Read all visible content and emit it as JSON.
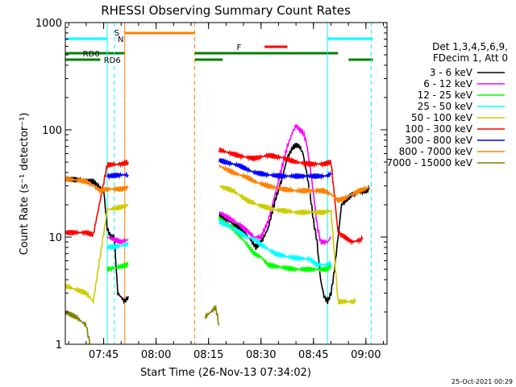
{
  "chart_data": {
    "type": "line",
    "title": "RHESSI Observing Summary Count Rates",
    "xlabel": "Start Time (26-Nov-13 07:34:02)",
    "ylabel": "Count Rate (s⁻¹ detector⁻¹)",
    "y_scale": "log",
    "ylim": [
      1,
      1000
    ],
    "xlim_minutes_after_start": [
      0,
      92
    ],
    "x_ticks": [
      {
        "label": "07:45",
        "minute": 10.97
      },
      {
        "label": "08:00",
        "minute": 25.97
      },
      {
        "label": "08:15",
        "minute": 40.97
      },
      {
        "label": "08:30",
        "minute": 55.97
      },
      {
        "label": "08:45",
        "minute": 70.97
      },
      {
        "label": "09:00",
        "minute": 85.97
      }
    ],
    "y_ticks": [
      {
        "label": "1",
        "value": 1
      },
      {
        "label": "10",
        "value": 10
      },
      {
        "label": "100",
        "value": 100
      },
      {
        "label": "1000",
        "value": 1000
      }
    ],
    "legend": {
      "placement": "right",
      "header": [
        "Det 1,3,4,5,6,9,",
        "FDecim 1, Att 0"
      ],
      "entries": [
        {
          "label": "3 - 6 keV",
          "color": "#000000"
        },
        {
          "label": "6 - 12 keV",
          "color": "#ff00ff"
        },
        {
          "label": "12 - 25 keV",
          "color": "#00ff00"
        },
        {
          "label": "25 - 50 keV",
          "color": "#00ffff"
        },
        {
          "label": "50 - 100 keV",
          "color": "#cccc00"
        },
        {
          "label": "100 - 300 keV",
          "color": "#ff0000"
        },
        {
          "label": "300 - 800 keV",
          "color": "#0000ff"
        },
        {
          "label": "800 - 7000 keV",
          "color": "#ff8000"
        },
        {
          "label": "7000 - 15000 keV",
          "color": "#808000"
        }
      ]
    },
    "series": [
      {
        "name": "3 - 6 keV",
        "color": "#000000",
        "points": [
          [
            0,
            35
          ],
          [
            8,
            33
          ],
          [
            11,
            27
          ],
          [
            12,
            12
          ],
          [
            13,
            10
          ],
          [
            14,
            10
          ],
          [
            15,
            3
          ],
          [
            17,
            2.5
          ],
          [
            18,
            2.8
          ],
          [
            35,
            null
          ],
          [
            44,
            16
          ],
          [
            47,
            14
          ],
          [
            50,
            12
          ],
          [
            53,
            9.5
          ],
          [
            54.5,
            8
          ],
          [
            56,
            9
          ],
          [
            58,
            12
          ],
          [
            60,
            22
          ],
          [
            62,
            35
          ],
          [
            63.5,
            55
          ],
          [
            65,
            68
          ],
          [
            66,
            72
          ],
          [
            67,
            70
          ],
          [
            68,
            60
          ],
          [
            69,
            40
          ],
          [
            70,
            25
          ],
          [
            71,
            14
          ],
          [
            72,
            9
          ],
          [
            73,
            4
          ],
          [
            74,
            2.8
          ],
          [
            75,
            2.5
          ],
          [
            76,
            3
          ],
          [
            77,
            5
          ],
          [
            79,
            20
          ],
          [
            82,
            25
          ],
          [
            86,
            27
          ],
          [
            87,
            28
          ]
        ]
      },
      {
        "name": "6 - 12 keV",
        "color": "#ff00ff",
        "points": [
          [
            12,
            10
          ],
          [
            16,
            9
          ],
          [
            18,
            9.5
          ],
          [
            35,
            null
          ],
          [
            44,
            17
          ],
          [
            50,
            13
          ],
          [
            54,
            10
          ],
          [
            56,
            10
          ],
          [
            58,
            14
          ],
          [
            60,
            25
          ],
          [
            62,
            45
          ],
          [
            63.5,
            70
          ],
          [
            65,
            95
          ],
          [
            66,
            110
          ],
          [
            67,
            100
          ],
          [
            68,
            95
          ],
          [
            69,
            75
          ],
          [
            70,
            45
          ],
          [
            71,
            25
          ],
          [
            72,
            13
          ],
          [
            73,
            9
          ],
          [
            75,
            9
          ],
          [
            76,
            10
          ]
        ]
      },
      {
        "name": "12 - 25 keV",
        "color": "#00ff00",
        "points": [
          [
            12,
            5
          ],
          [
            18,
            5.5
          ],
          [
            35,
            null
          ],
          [
            44,
            15
          ],
          [
            48,
            12
          ],
          [
            52,
            8.5
          ],
          [
            54,
            7
          ],
          [
            56,
            6.5
          ],
          [
            58,
            5.5
          ],
          [
            62,
            5.2
          ],
          [
            66,
            5
          ],
          [
            70,
            5
          ],
          [
            72,
            5
          ],
          [
            75,
            5
          ],
          [
            76,
            5.5
          ]
        ]
      },
      {
        "name": "25 - 50 keV",
        "color": "#00ffff",
        "points": [
          [
            12,
            8
          ],
          [
            18,
            8.5
          ],
          [
            35,
            null
          ],
          [
            44,
            14
          ],
          [
            48,
            12
          ],
          [
            52,
            10
          ],
          [
            54,
            9.5
          ],
          [
            56,
            8.5
          ],
          [
            60,
            7
          ],
          [
            64,
            6.5
          ],
          [
            70,
            6.2
          ],
          [
            72,
            5.5
          ],
          [
            75,
            5.5
          ],
          [
            76,
            5.8
          ]
        ]
      },
      {
        "name": "50 - 100 keV",
        "color": "#cccc00",
        "points": [
          [
            0,
            3.5
          ],
          [
            6,
            3
          ],
          [
            8,
            2.5
          ],
          [
            12,
            18
          ],
          [
            16,
            19
          ],
          [
            18,
            20
          ],
          [
            35,
            null
          ],
          [
            44,
            30
          ],
          [
            48,
            27
          ],
          [
            52,
            22
          ],
          [
            55,
            20
          ],
          [
            60,
            18
          ],
          [
            66,
            17
          ],
          [
            72,
            17
          ],
          [
            74,
            17
          ],
          [
            76,
            17.5
          ],
          [
            78,
            2.5
          ],
          [
            83,
            2.5
          ]
        ]
      },
      {
        "name": "100 - 300 keV",
        "color": "#ff0000",
        "points": [
          [
            0,
            11
          ],
          [
            3,
            11
          ],
          [
            6,
            11
          ],
          [
            8,
            10.5
          ],
          [
            12,
            47
          ],
          [
            16,
            48
          ],
          [
            18,
            50
          ],
          [
            35,
            null
          ],
          [
            44,
            65
          ],
          [
            50,
            57
          ],
          [
            54,
            54
          ],
          [
            58,
            58
          ],
          [
            62,
            55
          ],
          [
            66,
            50
          ],
          [
            70,
            48
          ],
          [
            74,
            48
          ],
          [
            76,
            50
          ],
          [
            78,
            11
          ],
          [
            82,
            9
          ],
          [
            85,
            9.5
          ]
        ]
      },
      {
        "name": "300 - 800 keV",
        "color": "#0000ff",
        "points": [
          [
            12,
            37
          ],
          [
            16,
            38
          ],
          [
            18,
            38
          ],
          [
            35,
            null
          ],
          [
            44,
            52
          ],
          [
            50,
            46
          ],
          [
            54,
            40
          ],
          [
            58,
            38
          ],
          [
            62,
            37
          ],
          [
            66,
            37
          ],
          [
            70,
            37
          ],
          [
            74,
            37
          ],
          [
            76,
            38
          ]
        ]
      },
      {
        "name": "800 - 7000 keV",
        "color": "#ff8000",
        "points": [
          [
            0,
            35
          ],
          [
            3,
            34
          ],
          [
            6,
            33
          ],
          [
            8,
            30
          ],
          [
            10,
            27
          ],
          [
            12,
            28
          ],
          [
            16,
            28
          ],
          [
            18,
            29
          ],
          [
            35,
            null
          ],
          [
            44,
            46
          ],
          [
            48,
            40
          ],
          [
            52,
            36
          ],
          [
            55,
            32
          ],
          [
            58,
            30
          ],
          [
            62,
            28
          ],
          [
            66,
            27
          ],
          [
            70,
            27
          ],
          [
            74,
            27
          ],
          [
            76,
            25
          ],
          [
            78,
            22
          ],
          [
            80,
            23
          ],
          [
            84,
            27
          ],
          [
            87,
            29
          ]
        ]
      },
      {
        "name": "7000 - 15000 keV",
        "color": "#808000",
        "points": [
          [
            0,
            2
          ],
          [
            3,
            1.8
          ],
          [
            6,
            1.5
          ],
          [
            7,
            1
          ],
          [
            35,
            null
          ],
          [
            40,
            1.8
          ],
          [
            43,
            2.2
          ],
          [
            44,
            1.5
          ]
        ]
      }
    ],
    "annotations": [
      {
        "label": "RD0",
        "color": "#008000"
      },
      {
        "label": "RD6",
        "color": "#008000"
      },
      {
        "label": "S",
        "color": "#ff8000"
      },
      {
        "label": "N",
        "color": "#00ffff"
      },
      {
        "label": "F",
        "color": "#ff0000"
      }
    ],
    "grid": false
  },
  "footer": {
    "timestamp": "25-Oct-2021 00:29"
  }
}
